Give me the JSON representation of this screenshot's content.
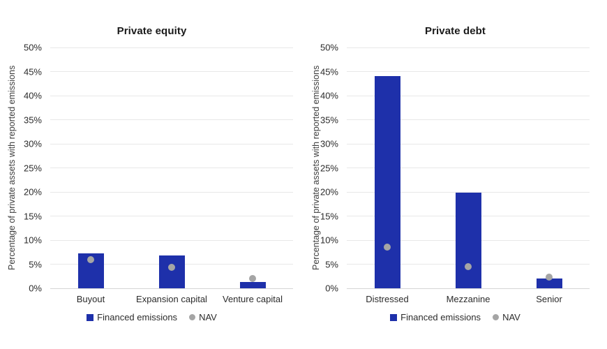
{
  "colors": {
    "financed_emissions_blue": "#1e30aa",
    "nav_gray": "#a5a5a5",
    "gridline": "#e8e8e8",
    "baseline": "#d5d5d5",
    "title_text": "#1a1a1a",
    "axis_text": "#2b2b2b",
    "background": "#ffffff"
  },
  "chart_data": [
    {
      "type": "bar",
      "title": "Private equity",
      "ylabel": "Percentage of private assets with reported emissions",
      "xlabel": "",
      "categories": [
        "Buyout",
        "Expansion capital",
        "Venture capital"
      ],
      "series": [
        {
          "name": "Financed emissions",
          "type": "bar",
          "color": "#1e30aa",
          "values": [
            7.2,
            6.8,
            1.3
          ]
        },
        {
          "name": "NAV",
          "type": "scatter",
          "color": "#a5a5a5",
          "values": [
            6.0,
            4.4,
            2.0
          ]
        }
      ],
      "ylim": [
        0,
        50
      ],
      "ytick_step": 5,
      "ytick_labels": [
        "0%",
        "5%",
        "10%",
        "15%",
        "20%",
        "25%",
        "30%",
        "35%",
        "40%",
        "45%",
        "50%"
      ],
      "grid": true,
      "legend_position": "bottom"
    },
    {
      "type": "bar",
      "title": "Private debt",
      "ylabel": "Percentage of private assets with reported emissions",
      "xlabel": "",
      "categories": [
        "Distressed",
        "Mezzanine",
        "Senior"
      ],
      "series": [
        {
          "name": "Financed emissions",
          "type": "bar",
          "color": "#1e30aa",
          "values": [
            44.0,
            19.8,
            2.1
          ]
        },
        {
          "name": "NAV",
          "type": "scatter",
          "color": "#a5a5a5",
          "values": [
            8.5,
            4.5,
            2.3
          ]
        }
      ],
      "ylim": [
        0,
        50
      ],
      "ytick_step": 5,
      "ytick_labels": [
        "0%",
        "5%",
        "10%",
        "15%",
        "20%",
        "25%",
        "30%",
        "35%",
        "40%",
        "45%",
        "50%"
      ],
      "grid": true,
      "legend_position": "bottom"
    }
  ]
}
